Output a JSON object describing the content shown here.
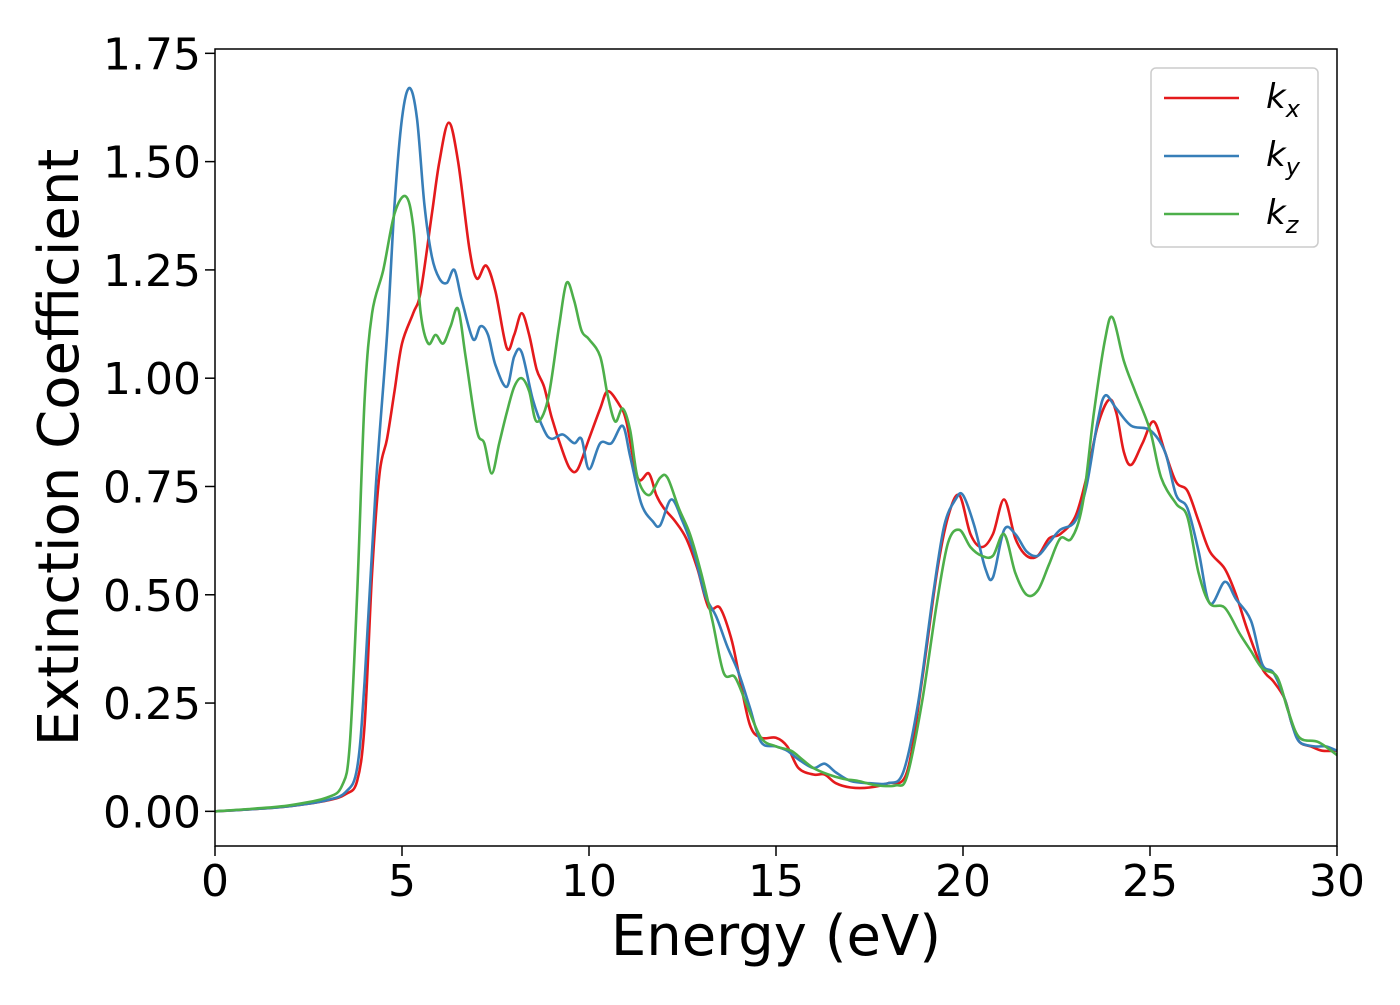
{
  "chart_data": {
    "type": "line",
    "title": "",
    "xlabel": "Energy (eV)",
    "ylabel": "Extinction Coefficient",
    "xlim": [
      0,
      30
    ],
    "ylim": [
      -0.08,
      1.76
    ],
    "x_ticks": [
      "0",
      "5",
      "10",
      "15",
      "20",
      "25",
      "30"
    ],
    "x_tick_values": [
      0,
      5,
      10,
      15,
      20,
      25,
      30
    ],
    "y_ticks": [
      "0.00",
      "0.25",
      "0.50",
      "0.75",
      "1.00",
      "1.25",
      "1.50",
      "1.75"
    ],
    "y_tick_values": [
      0,
      0.25,
      0.5,
      0.75,
      1.0,
      1.25,
      1.5,
      1.75
    ],
    "grid": false,
    "legend_position": "top-right",
    "series": [
      {
        "name": "k_x",
        "label_main": "k",
        "label_sub": "x",
        "color": "#e41a1c",
        "points": [
          [
            0,
            0
          ],
          [
            1,
            0.005
          ],
          [
            2,
            0.012
          ],
          [
            3,
            0.025
          ],
          [
            3.5,
            0.04
          ],
          [
            3.8,
            0.07
          ],
          [
            4.0,
            0.2
          ],
          [
            4.2,
            0.55
          ],
          [
            4.4,
            0.78
          ],
          [
            4.6,
            0.86
          ],
          [
            4.8,
            0.97
          ],
          [
            5.0,
            1.08
          ],
          [
            5.3,
            1.15
          ],
          [
            5.5,
            1.2
          ],
          [
            5.8,
            1.38
          ],
          [
            6.0,
            1.5
          ],
          [
            6.25,
            1.59
          ],
          [
            6.5,
            1.5
          ],
          [
            6.8,
            1.3
          ],
          [
            7.0,
            1.23
          ],
          [
            7.25,
            1.26
          ],
          [
            7.5,
            1.2
          ],
          [
            7.8,
            1.07
          ],
          [
            8.0,
            1.1
          ],
          [
            8.2,
            1.15
          ],
          [
            8.4,
            1.1
          ],
          [
            8.6,
            1.02
          ],
          [
            8.8,
            0.98
          ],
          [
            9.0,
            0.91
          ],
          [
            9.3,
            0.83
          ],
          [
            9.5,
            0.79
          ],
          [
            9.7,
            0.79
          ],
          [
            10.0,
            0.86
          ],
          [
            10.3,
            0.93
          ],
          [
            10.5,
            0.97
          ],
          [
            10.8,
            0.94
          ],
          [
            11.0,
            0.9
          ],
          [
            11.3,
            0.77
          ],
          [
            11.6,
            0.78
          ],
          [
            11.8,
            0.73
          ],
          [
            12.0,
            0.7
          ],
          [
            12.3,
            0.67
          ],
          [
            12.6,
            0.63
          ],
          [
            12.9,
            0.56
          ],
          [
            13.2,
            0.47
          ],
          [
            13.5,
            0.47
          ],
          [
            13.8,
            0.4
          ],
          [
            14.0,
            0.32
          ],
          [
            14.3,
            0.2
          ],
          [
            14.6,
            0.17
          ],
          [
            15.0,
            0.17
          ],
          [
            15.3,
            0.15
          ],
          [
            15.6,
            0.1
          ],
          [
            16.0,
            0.085
          ],
          [
            16.3,
            0.085
          ],
          [
            16.6,
            0.065
          ],
          [
            17.0,
            0.055
          ],
          [
            17.5,
            0.055
          ],
          [
            18.0,
            0.065
          ],
          [
            18.5,
            0.09
          ],
          [
            18.9,
            0.3
          ],
          [
            19.3,
            0.55
          ],
          [
            19.6,
            0.68
          ],
          [
            19.9,
            0.73
          ],
          [
            20.2,
            0.64
          ],
          [
            20.5,
            0.61
          ],
          [
            20.8,
            0.64
          ],
          [
            21.1,
            0.72
          ],
          [
            21.4,
            0.63
          ],
          [
            21.7,
            0.59
          ],
          [
            22.0,
            0.59
          ],
          [
            22.3,
            0.63
          ],
          [
            22.6,
            0.64
          ],
          [
            23.0,
            0.68
          ],
          [
            23.3,
            0.77
          ],
          [
            23.6,
            0.89
          ],
          [
            23.9,
            0.95
          ],
          [
            24.1,
            0.92
          ],
          [
            24.3,
            0.83
          ],
          [
            24.5,
            0.8
          ],
          [
            24.8,
            0.85
          ],
          [
            25.1,
            0.9
          ],
          [
            25.4,
            0.83
          ],
          [
            25.7,
            0.76
          ],
          [
            26.0,
            0.74
          ],
          [
            26.3,
            0.67
          ],
          [
            26.6,
            0.6
          ],
          [
            27.0,
            0.56
          ],
          [
            27.3,
            0.5
          ],
          [
            27.6,
            0.42
          ],
          [
            28.0,
            0.33
          ],
          [
            28.3,
            0.3
          ],
          [
            28.6,
            0.26
          ],
          [
            28.8,
            0.2
          ],
          [
            29.0,
            0.16
          ],
          [
            29.3,
            0.15
          ],
          [
            29.6,
            0.14
          ],
          [
            30.0,
            0.14
          ]
        ]
      },
      {
        "name": "k_y",
        "label_main": "k",
        "label_sub": "y",
        "color": "#377eb8",
        "points": [
          [
            0,
            0
          ],
          [
            1,
            0.005
          ],
          [
            2,
            0.012
          ],
          [
            3,
            0.026
          ],
          [
            3.5,
            0.045
          ],
          [
            3.8,
            0.1
          ],
          [
            4.0,
            0.3
          ],
          [
            4.3,
            0.75
          ],
          [
            4.6,
            1.1
          ],
          [
            4.8,
            1.4
          ],
          [
            5.0,
            1.6
          ],
          [
            5.2,
            1.67
          ],
          [
            5.4,
            1.6
          ],
          [
            5.6,
            1.4
          ],
          [
            5.8,
            1.28
          ],
          [
            6.0,
            1.23
          ],
          [
            6.2,
            1.22
          ],
          [
            6.4,
            1.25
          ],
          [
            6.6,
            1.18
          ],
          [
            6.9,
            1.09
          ],
          [
            7.1,
            1.12
          ],
          [
            7.3,
            1.1
          ],
          [
            7.5,
            1.03
          ],
          [
            7.8,
            0.98
          ],
          [
            8.0,
            1.05
          ],
          [
            8.2,
            1.06
          ],
          [
            8.5,
            0.95
          ],
          [
            8.8,
            0.88
          ],
          [
            9.0,
            0.86
          ],
          [
            9.3,
            0.87
          ],
          [
            9.6,
            0.85
          ],
          [
            9.8,
            0.86
          ],
          [
            10.0,
            0.79
          ],
          [
            10.3,
            0.85
          ],
          [
            10.6,
            0.85
          ],
          [
            10.9,
            0.89
          ],
          [
            11.1,
            0.82
          ],
          [
            11.4,
            0.71
          ],
          [
            11.7,
            0.67
          ],
          [
            11.9,
            0.66
          ],
          [
            12.2,
            0.72
          ],
          [
            12.5,
            0.67
          ],
          [
            12.8,
            0.6
          ],
          [
            13.1,
            0.5
          ],
          [
            13.4,
            0.45
          ],
          [
            13.7,
            0.38
          ],
          [
            14.0,
            0.32
          ],
          [
            14.3,
            0.24
          ],
          [
            14.6,
            0.16
          ],
          [
            15.0,
            0.15
          ],
          [
            15.3,
            0.14
          ],
          [
            15.6,
            0.12
          ],
          [
            16.0,
            0.1
          ],
          [
            16.3,
            0.11
          ],
          [
            16.6,
            0.09
          ],
          [
            17.0,
            0.07
          ],
          [
            17.5,
            0.065
          ],
          [
            18.0,
            0.065
          ],
          [
            18.4,
            0.09
          ],
          [
            18.8,
            0.25
          ],
          [
            19.2,
            0.5
          ],
          [
            19.5,
            0.66
          ],
          [
            19.8,
            0.72
          ],
          [
            20.0,
            0.73
          ],
          [
            20.3,
            0.66
          ],
          [
            20.6,
            0.56
          ],
          [
            20.8,
            0.54
          ],
          [
            21.1,
            0.65
          ],
          [
            21.4,
            0.64
          ],
          [
            21.7,
            0.6
          ],
          [
            22.0,
            0.59
          ],
          [
            22.3,
            0.62
          ],
          [
            22.6,
            0.65
          ],
          [
            23.0,
            0.67
          ],
          [
            23.3,
            0.75
          ],
          [
            23.6,
            0.9
          ],
          [
            23.8,
            0.96
          ],
          [
            24.1,
            0.93
          ],
          [
            24.5,
            0.89
          ],
          [
            25.0,
            0.88
          ],
          [
            25.4,
            0.83
          ],
          [
            25.7,
            0.73
          ],
          [
            26.0,
            0.7
          ],
          [
            26.3,
            0.6
          ],
          [
            26.6,
            0.48
          ],
          [
            27.0,
            0.53
          ],
          [
            27.3,
            0.49
          ],
          [
            27.7,
            0.44
          ],
          [
            28.0,
            0.34
          ],
          [
            28.3,
            0.32
          ],
          [
            28.6,
            0.26
          ],
          [
            28.8,
            0.2
          ],
          [
            29.0,
            0.16
          ],
          [
            29.4,
            0.15
          ],
          [
            29.7,
            0.15
          ],
          [
            30.0,
            0.14
          ]
        ]
      },
      {
        "name": "k_z",
        "label_main": "k",
        "label_sub": "z",
        "color": "#4daf4a",
        "points": [
          [
            0,
            0
          ],
          [
            1,
            0.006
          ],
          [
            2,
            0.014
          ],
          [
            3,
            0.032
          ],
          [
            3.4,
            0.06
          ],
          [
            3.6,
            0.15
          ],
          [
            3.8,
            0.5
          ],
          [
            4.0,
            0.95
          ],
          [
            4.2,
            1.15
          ],
          [
            4.5,
            1.25
          ],
          [
            4.8,
            1.38
          ],
          [
            5.1,
            1.42
          ],
          [
            5.3,
            1.35
          ],
          [
            5.5,
            1.15
          ],
          [
            5.7,
            1.08
          ],
          [
            5.9,
            1.1
          ],
          [
            6.1,
            1.08
          ],
          [
            6.3,
            1.12
          ],
          [
            6.5,
            1.16
          ],
          [
            6.7,
            1.05
          ],
          [
            7.0,
            0.88
          ],
          [
            7.2,
            0.85
          ],
          [
            7.4,
            0.78
          ],
          [
            7.6,
            0.85
          ],
          [
            7.8,
            0.92
          ],
          [
            8.0,
            0.98
          ],
          [
            8.2,
            1.0
          ],
          [
            8.4,
            0.97
          ],
          [
            8.6,
            0.9
          ],
          [
            8.9,
            0.95
          ],
          [
            9.2,
            1.12
          ],
          [
            9.4,
            1.22
          ],
          [
            9.6,
            1.18
          ],
          [
            9.8,
            1.11
          ],
          [
            10.0,
            1.09
          ],
          [
            10.3,
            1.05
          ],
          [
            10.5,
            0.96
          ],
          [
            10.7,
            0.9
          ],
          [
            10.9,
            0.93
          ],
          [
            11.1,
            0.88
          ],
          [
            11.3,
            0.77
          ],
          [
            11.6,
            0.73
          ],
          [
            11.9,
            0.77
          ],
          [
            12.1,
            0.77
          ],
          [
            12.4,
            0.7
          ],
          [
            12.7,
            0.64
          ],
          [
            13.0,
            0.55
          ],
          [
            13.3,
            0.44
          ],
          [
            13.6,
            0.32
          ],
          [
            13.9,
            0.31
          ],
          [
            14.2,
            0.25
          ],
          [
            14.6,
            0.17
          ],
          [
            15.0,
            0.15
          ],
          [
            15.4,
            0.14
          ],
          [
            15.7,
            0.12
          ],
          [
            16.0,
            0.1
          ],
          [
            16.4,
            0.085
          ],
          [
            16.8,
            0.075
          ],
          [
            17.2,
            0.07
          ],
          [
            17.7,
            0.06
          ],
          [
            18.2,
            0.06
          ],
          [
            18.5,
            0.08
          ],
          [
            18.9,
            0.25
          ],
          [
            19.3,
            0.48
          ],
          [
            19.6,
            0.62
          ],
          [
            19.9,
            0.65
          ],
          [
            20.2,
            0.61
          ],
          [
            20.5,
            0.59
          ],
          [
            20.8,
            0.59
          ],
          [
            21.1,
            0.64
          ],
          [
            21.4,
            0.55
          ],
          [
            21.7,
            0.5
          ],
          [
            22.0,
            0.51
          ],
          [
            22.3,
            0.57
          ],
          [
            22.6,
            0.63
          ],
          [
            22.9,
            0.63
          ],
          [
            23.2,
            0.71
          ],
          [
            23.5,
            0.92
          ],
          [
            23.8,
            1.09
          ],
          [
            24.0,
            1.14
          ],
          [
            24.3,
            1.04
          ],
          [
            24.6,
            0.97
          ],
          [
            25.0,
            0.88
          ],
          [
            25.3,
            0.77
          ],
          [
            25.7,
            0.71
          ],
          [
            26.0,
            0.68
          ],
          [
            26.3,
            0.55
          ],
          [
            26.6,
            0.48
          ],
          [
            27.0,
            0.47
          ],
          [
            27.4,
            0.41
          ],
          [
            27.7,
            0.37
          ],
          [
            28.0,
            0.33
          ],
          [
            28.4,
            0.31
          ],
          [
            28.7,
            0.23
          ],
          [
            29.0,
            0.17
          ],
          [
            29.5,
            0.16
          ],
          [
            30.0,
            0.13
          ]
        ]
      }
    ]
  }
}
